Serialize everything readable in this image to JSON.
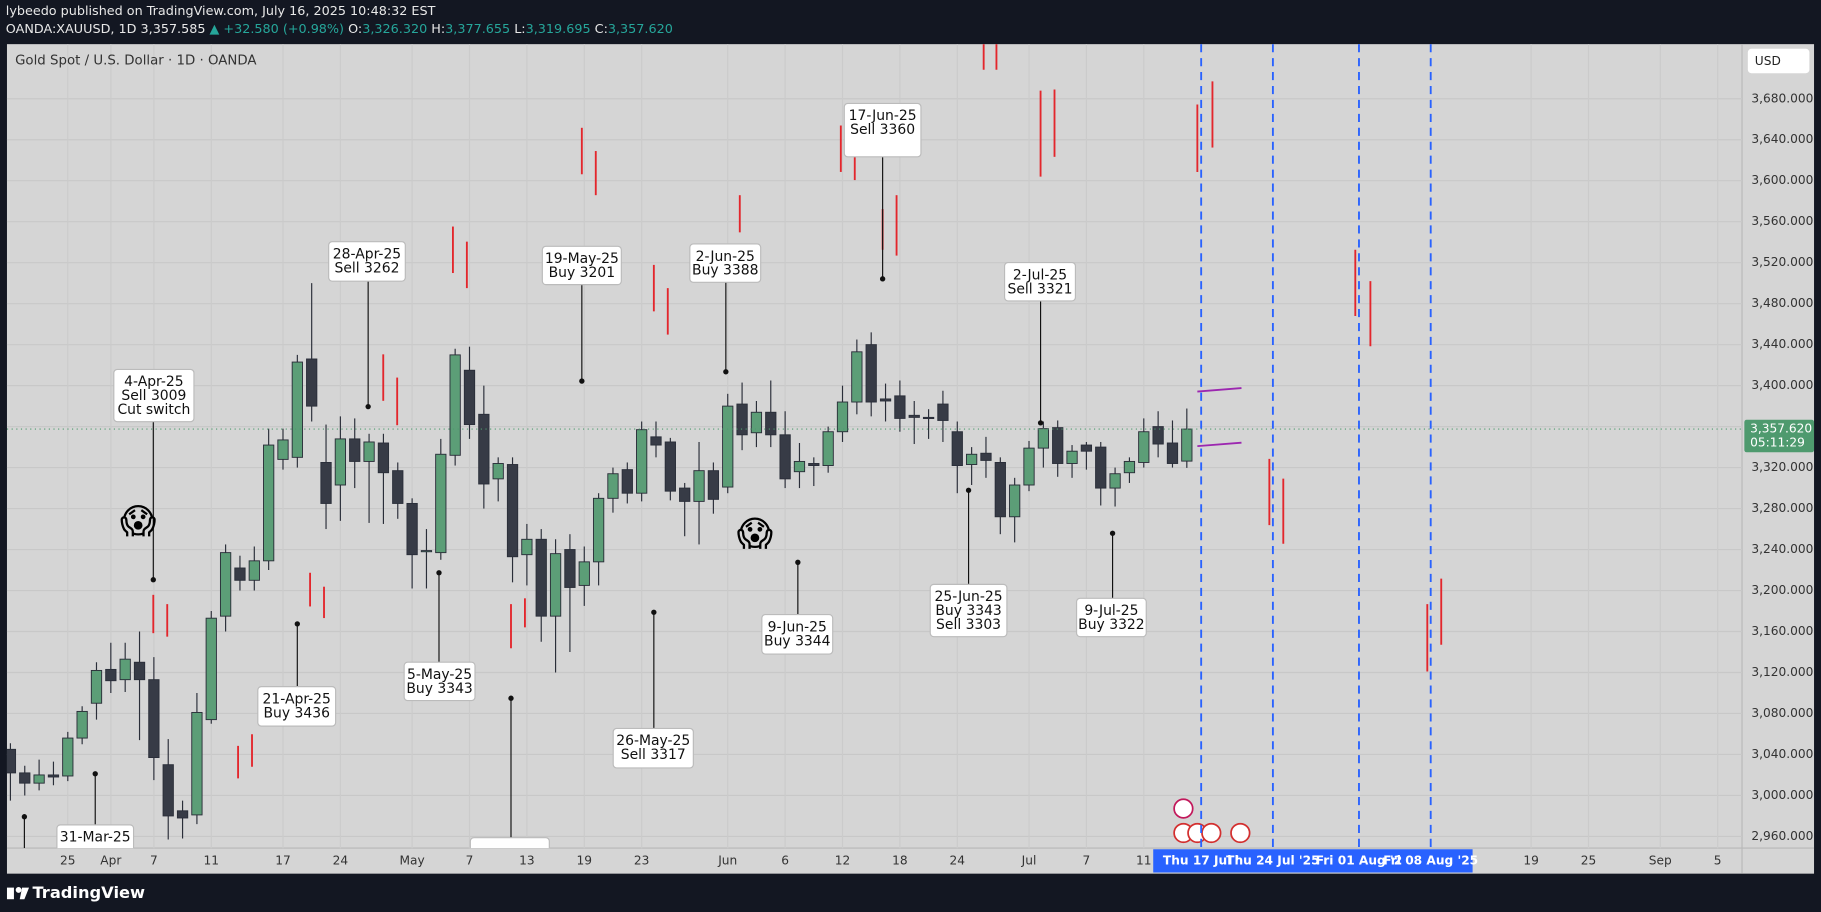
{
  "header": {
    "publisher": "lybeedo published on TradingView.com, July 16, 2025 10:48:32 EST",
    "symbol": "OANDA:XAUUSD, 1D",
    "last": "3,357.585",
    "change": "▲ +32.580 (+0.98%)",
    "ohlc": [
      {
        "label": "O:",
        "value": "3,326.320"
      },
      {
        "label": "H:",
        "value": "3,377.655"
      },
      {
        "label": "L:",
        "value": "3,319.695"
      },
      {
        "label": "C:",
        "value": "3,357.620"
      }
    ]
  },
  "footer": {
    "brand": "TradingView"
  },
  "chart_data": {
    "type": "candlestick",
    "title": "Gold Spot / U.S. Dollar · 1D · OANDA",
    "currency": "USD",
    "up_color": "#5c9e77",
    "down_color": "#373b46",
    "open": [
      3045,
      3022,
      3012,
      3020,
      3019,
      3056,
      3090,
      3123,
      3113,
      3130,
      3113,
      3030,
      2985,
      2981,
      3074,
      3175,
      3222,
      3210,
      3229,
      3328,
      3330,
      3426,
      3325,
      3303,
      3348,
      3326,
      3344,
      3317,
      3285,
      3238,
      3237,
      3332,
      3415,
      3372,
      3309,
      3323,
      3235,
      3250,
      3175,
      3240,
      3205,
      3228,
      3290,
      3318,
      3295,
      3350,
      3345,
      3300,
      3287,
      3317,
      3301,
      3382,
      3354,
      3374,
      3352,
      3316,
      3324,
      3322,
      3355,
      3384,
      3440,
      3387,
      3390,
      3371,
      3369,
      3382,
      3355,
      3323,
      3334,
      3325,
      3272,
      3303,
      3339,
      3359,
      3324,
      3342,
      3340,
      3300,
      3315,
      3325,
      3360,
      3344,
      3326.32
    ],
    "high": [
      3051,
      3029,
      3035,
      3033,
      3062,
      3087,
      3130,
      3149,
      3149,
      3160,
      3135,
      3055,
      2995,
      3100,
      3180,
      3245,
      3234,
      3243,
      3358,
      3358,
      3430,
      3500,
      3362,
      3370,
      3368,
      3353,
      3353,
      3325,
      3290,
      3260,
      3348,
      3436,
      3438,
      3400,
      3330,
      3330,
      3265,
      3260,
      3250,
      3255,
      3243,
      3295,
      3320,
      3325,
      3365,
      3365,
      3349,
      3305,
      3345,
      3325,
      3392,
      3403,
      3385,
      3405,
      3375,
      3344,
      3330,
      3360,
      3400,
      3445,
      3452,
      3402,
      3405,
      3385,
      3377,
      3395,
      3365,
      3340,
      3350,
      3330,
      3310,
      3346,
      3365,
      3366,
      3342,
      3345,
      3345,
      3320,
      3330,
      3368,
      3375,
      3366,
      3377.655
    ],
    "low": [
      2995,
      3000,
      3005,
      3010,
      3014,
      3050,
      3074,
      3100,
      3101,
      3054,
      3015,
      2957,
      2958,
      2972,
      3070,
      3160,
      3200,
      3200,
      3220,
      3318,
      3320,
      3365,
      3260,
      3268,
      3300,
      3266,
      3265,
      3270,
      3202,
      3202,
      3230,
      3322,
      3348,
      3280,
      3287,
      3208,
      3205,
      3150,
      3120,
      3140,
      3185,
      3205,
      3276,
      3285,
      3287,
      3330,
      3288,
      3253,
      3245,
      3275,
      3295,
      3337,
      3340,
      3340,
      3300,
      3300,
      3302,
      3315,
      3345,
      3372,
      3370,
      3365,
      3355,
      3343,
      3348,
      3345,
      3295,
      3303,
      3310,
      3255,
      3247,
      3297,
      3320,
      3311,
      3310,
      3318,
      3283,
      3282,
      3305,
      3320,
      3330,
      3320,
      3319.695
    ],
    "close": [
      3022,
      3012,
      3020,
      3018,
      3056,
      3082,
      3122,
      3112,
      3133,
      3113,
      3037,
      2980,
      2978,
      3081,
      3173,
      3237,
      3210,
      3229,
      3342,
      3347,
      3423,
      3380,
      3285,
      3348,
      3326,
      3345,
      3315,
      3285,
      3235,
      3239,
      3333,
      3430,
      3362,
      3304,
      3324,
      3233,
      3250,
      3175,
      3236,
      3203,
      3228,
      3290,
      3314,
      3295,
      3357,
      3342,
      3297,
      3287,
      3317,
      3289,
      3380,
      3352,
      3374,
      3352,
      3309,
      3326,
      3322,
      3355,
      3384,
      3433,
      3384,
      3385,
      3368,
      3369,
      3368,
      3366,
      3322,
      3333,
      3327,
      3272,
      3303,
      3339,
      3358,
      3324,
      3336,
      3336,
      3300,
      3314,
      3326,
      3355,
      3343,
      3324,
      3357.62
    ],
    "xlim": [
      -0.24,
      120.7
    ],
    "xticks": [
      {
        "value": 4,
        "label": "25"
      },
      {
        "value": 7,
        "label": "Apr"
      },
      {
        "value": 10,
        "label": "7"
      },
      {
        "value": 14,
        "label": "11"
      },
      {
        "value": 19,
        "label": "17"
      },
      {
        "value": 23,
        "label": "24"
      },
      {
        "value": 28,
        "label": "May"
      },
      {
        "value": 32,
        "label": "7"
      },
      {
        "value": 36,
        "label": "13"
      },
      {
        "value": 40,
        "label": "19"
      },
      {
        "value": 44,
        "label": "23"
      },
      {
        "value": 50,
        "label": "Jun"
      },
      {
        "value": 54,
        "label": "6"
      },
      {
        "value": 58,
        "label": "12"
      },
      {
        "value": 62,
        "label": "18"
      },
      {
        "value": 66,
        "label": "24"
      },
      {
        "value": 71,
        "label": "Jul"
      },
      {
        "value": 75,
        "label": "7"
      },
      {
        "value": 79,
        "label": "11"
      },
      {
        "value": 106,
        "label": "19"
      },
      {
        "value": 110,
        "label": "25"
      },
      {
        "value": 115,
        "label": "Sep"
      },
      {
        "value": 119,
        "label": "5"
      }
    ],
    "time_markers": [
      {
        "value": 83,
        "label": "Thu 17 Jul '"
      },
      {
        "value": 88,
        "label": "Thu 24 Jul '25"
      },
      {
        "value": 94,
        "label": "Fri 01 Aug '2"
      },
      {
        "value": 99,
        "label": "Fri 08 Aug '25"
      }
    ],
    "ylim": [
      2948.6,
      3733.3
    ],
    "yticks": [
      {
        "value": 3680,
        "label": "3,680.000"
      },
      {
        "value": 3640,
        "label": "3,640.000"
      },
      {
        "value": 3600,
        "label": "3,600.000"
      },
      {
        "value": 3560,
        "label": "3,560.000"
      },
      {
        "value": 3520,
        "label": "3,520.000"
      },
      {
        "value": 3480,
        "label": "3,480.000"
      },
      {
        "value": 3440,
        "label": "3,440.000"
      },
      {
        "value": 3400,
        "label": "3,400.000"
      },
      {
        "value": 3360,
        "label": "3,360.000"
      },
      {
        "value": 3320,
        "label": "3,320.000"
      },
      {
        "value": 3280,
        "label": "3,280.000"
      },
      {
        "value": 3240,
        "label": "3,240.000"
      },
      {
        "value": 3200,
        "label": "3,200.000"
      },
      {
        "value": 3160,
        "label": "3,160.000"
      },
      {
        "value": 3120,
        "label": "3,120.000"
      },
      {
        "value": 3080,
        "label": "3,080.000"
      },
      {
        "value": 3040,
        "label": "3,040.000"
      },
      {
        "value": 3000,
        "label": "3,000.000"
      },
      {
        "value": 2960,
        "label": "2,960.000"
      }
    ],
    "grid": true,
    "last_price": {
      "value": 3357.62,
      "label": "3,357.620"
    },
    "countdown": "05:11:29",
    "annotations": [
      {
        "lines": [
          "4-Apr-25",
          "Sell 3009",
          "Cut switch"
        ]
      },
      {
        "lines": [
          "28-Apr-25",
          "Sell 3262"
        ]
      },
      {
        "lines": [
          "19-May-25",
          "Buy 3201"
        ]
      },
      {
        "lines": [
          "2-Jun-25",
          "Buy 3388"
        ]
      },
      {
        "lines": [
          "17-Jun-25",
          "Sell 3360"
        ]
      },
      {
        "lines": [
          "2-Jul-25",
          "Sell 3321"
        ]
      },
      {
        "lines": [
          "21-Apr-25",
          "Buy 3436"
        ]
      },
      {
        "lines": [
          "5-May-25",
          "Buy 3343"
        ]
      },
      {
        "lines": [
          "26-May-25",
          "Sell 3317"
        ]
      },
      {
        "lines": [
          "9-Jun-25",
          "Buy 3344"
        ]
      },
      {
        "lines": [
          "25-Jun-25",
          "Buy 3343",
          "Sell 3303"
        ]
      },
      {
        "lines": [
          "9-Jul-25",
          "Buy 3322"
        ]
      },
      {
        "lines": [
          "31-Mar-25"
        ]
      }
    ],
    "reactions": [
      "😱",
      "😱"
    ]
  }
}
